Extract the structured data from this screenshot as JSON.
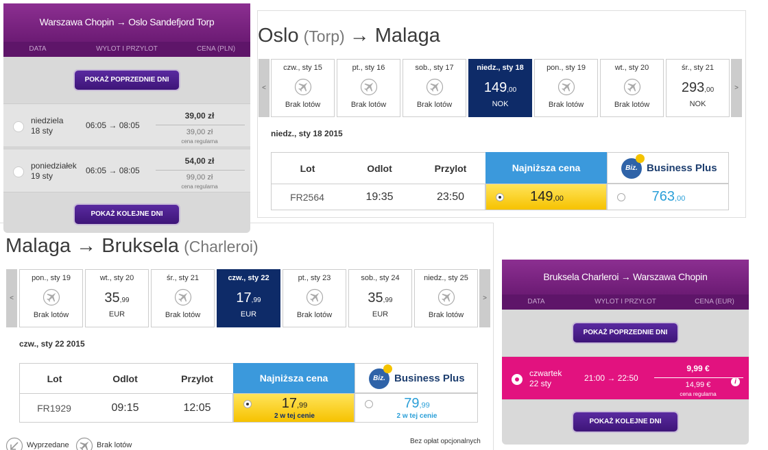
{
  "wizz_outbound": {
    "title": "Warszawa Chopin → Oslo Sandefjord Torp",
    "headers": [
      "DATA",
      "WYLOT I PRZYLOT",
      "CENA (PLN)"
    ],
    "prev_button": "POKAŻ POPRZEDNIE DNI",
    "next_button": "POKAŻ KOLEJNE DNI",
    "rows": [
      {
        "day": "niedziela",
        "date": "18 sty",
        "times": "06:05 → 08:05",
        "price": "39,00 zł",
        "regular_price": "39,00 zł",
        "regular_label": "cena regularna"
      },
      {
        "day": "poniedziałek",
        "date": "19 sty",
        "times": "06:05 → 08:05",
        "price": "54,00 zł",
        "regular_price": "99,00 zł",
        "regular_label": "cena regularna"
      }
    ]
  },
  "ryanair_outbound": {
    "title": [
      "Oslo",
      "(Torp)",
      "→ Malaga"
    ],
    "prev": "<",
    "next": ">",
    "days": [
      {
        "label": "czw., sty 15",
        "no_flights": "Brak lotów"
      },
      {
        "label": "pt., sty 16",
        "no_flights": "Brak lotów"
      },
      {
        "label": "sob., sty 17",
        "no_flights": "Brak lotów"
      },
      {
        "label": "niedz., sty 18",
        "price": "149",
        "decimals": ",00",
        "currency": "NOK",
        "selected": true
      },
      {
        "label": "pon., sty 19",
        "no_flights": "Brak lotów"
      },
      {
        "label": "wt., sty 20",
        "no_flights": "Brak lotów"
      },
      {
        "label": "śr., sty 21",
        "price": "293",
        "decimals": ",00",
        "currency": "NOK"
      }
    ],
    "selected_date": "niedz., sty 18 2015",
    "table": {
      "headers": [
        "Lot",
        "Odlot",
        "Przylot",
        "Najniższa cena",
        "Business Plus"
      ],
      "badge": "Biz.",
      "rows": [
        {
          "flight": "FR2564",
          "departure": "19:35",
          "arrival": "23:50",
          "lowest": {
            "price": "149",
            "decimals": ",00"
          },
          "business": {
            "price": "763",
            "decimals": ",00"
          }
        }
      ]
    }
  },
  "ryanair_return": {
    "title": [
      "Malaga → Bruksela",
      "(Charleroi)"
    ],
    "prev": "<",
    "next": ">",
    "days": [
      {
        "label": "pon., sty 19",
        "no_flights": "Brak lotów"
      },
      {
        "label": "wt., sty 20",
        "price": "35",
        "decimals": ",99",
        "currency": "EUR"
      },
      {
        "label": "śr., sty 21",
        "no_flights": "Brak lotów"
      },
      {
        "label": "czw., sty 22",
        "price": "17",
        "decimals": ",99",
        "currency": "EUR",
        "selected": true
      },
      {
        "label": "pt., sty 23",
        "no_flights": "Brak lotów"
      },
      {
        "label": "sob., sty 24",
        "price": "35",
        "decimals": ",99",
        "currency": "EUR"
      },
      {
        "label": "niedz., sty 25",
        "no_flights": "Brak lotów"
      }
    ],
    "selected_date": "czw., sty 22 2015",
    "table": {
      "headers": [
        "Lot",
        "Odlot",
        "Przylot",
        "Najniższa cena",
        "Business Plus"
      ],
      "badge": "Biz.",
      "rows": [
        {
          "flight": "FR1929",
          "departure": "09:15",
          "arrival": "12:05",
          "lowest": {
            "price": "17",
            "decimals": ",99",
            "note": "2 w tej cenie"
          },
          "business": {
            "price": "79",
            "decimals": ",99",
            "note": "2 w tej cenie"
          }
        }
      ]
    },
    "legend": {
      "sold_out": "Wyprzedane",
      "no_flights": "Brak lotów",
      "note": "Bez opłat opcjonalnych"
    }
  },
  "wizz_return": {
    "title": "Bruksela Charleroi → Warszawa Chopin",
    "headers": [
      "DATA",
      "WYLOT I PRZYLOT",
      "CENA (EUR)"
    ],
    "prev_button": "POKAŻ POPRZEDNIE DNI",
    "next_button": "POKAŻ KOLEJNE DNI",
    "rows": [
      {
        "day": "czwartek",
        "date": "22 sty",
        "times": "21:00 → 22:50",
        "price": "9,99 €",
        "regular_price": "14,99 €",
        "regular_label": "cena regularna",
        "info_icon": "i",
        "selected": true
      }
    ]
  }
}
